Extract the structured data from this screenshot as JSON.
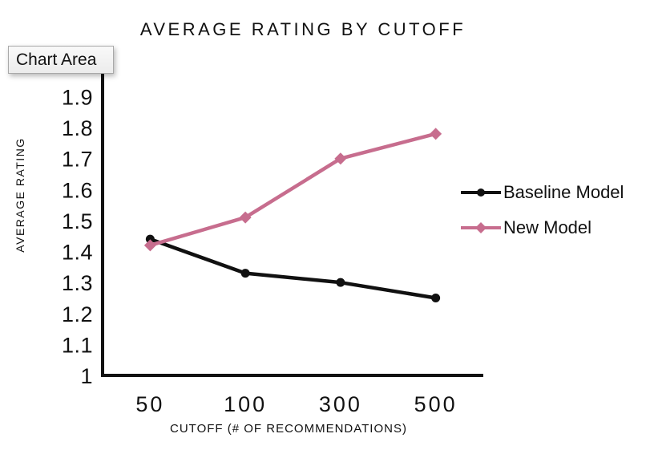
{
  "tooltip": {
    "label": "Chart Area"
  },
  "chart_data": {
    "type": "line",
    "title": "AVERAGE RATING BY CUTOFF",
    "xlabel": "CUTOFF (# OF RECOMMENDATIONS)",
    "ylabel": "AVERAGE RATING",
    "categories": [
      "50",
      "100",
      "300",
      "500"
    ],
    "series": [
      {
        "name": "Baseline Model",
        "marker": "circle",
        "color": "#111111",
        "values": [
          1.44,
          1.33,
          1.3,
          1.25
        ]
      },
      {
        "name": "New Model",
        "marker": "diamond",
        "color": "#c76d8e",
        "values": [
          1.42,
          1.51,
          1.7,
          1.78
        ]
      }
    ],
    "ylim": [
      1,
      1.9
    ],
    "y_ticks": [
      "1.9",
      "1.8",
      "1.7",
      "1.6",
      "1.5",
      "1.4",
      "1.3",
      "1.2",
      "1.1",
      "1"
    ],
    "grid": false,
    "legend_position": "right"
  },
  "colors": {
    "axis": "#111111",
    "series_black": "#111111",
    "series_pink": "#c76d8e",
    "tooltip_border": "#a9a9a9"
  }
}
